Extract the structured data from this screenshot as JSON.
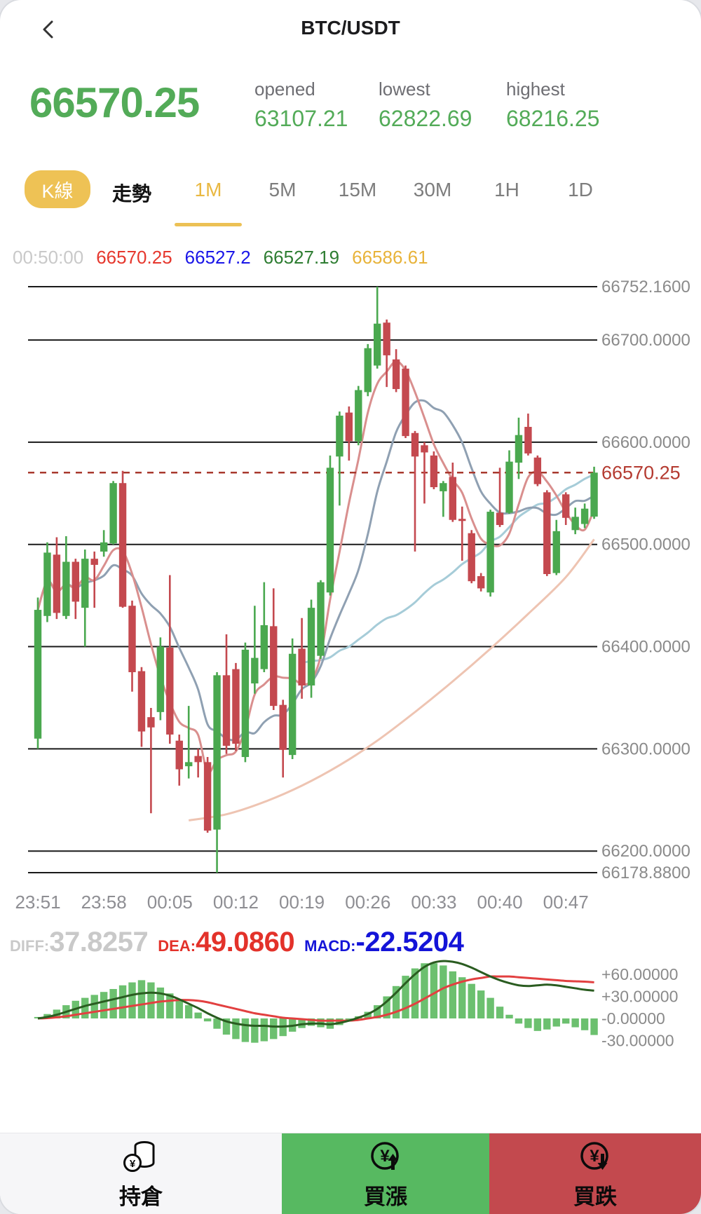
{
  "header": {
    "title": "BTC/USDT"
  },
  "ticker": {
    "price": "66570.25",
    "opened_label": "opened",
    "opened": "63107.21",
    "lowest_label": "lowest",
    "lowest": "62822.69",
    "highest_label": "highest",
    "highest": "68216.25"
  },
  "tabs": {
    "kline_label": "K線",
    "trend_label": "走勢",
    "intervals": [
      "1M",
      "5M",
      "15M",
      "30M",
      "1H",
      "1D"
    ],
    "active_interval": "1M"
  },
  "legend": {
    "time": "00:50:00",
    "items": [
      {
        "text": "66570.25",
        "color": "#e6382e"
      },
      {
        "text": "66527.2",
        "color": "#1a16e8"
      },
      {
        "text": "66527.19",
        "color": "#2e7d32"
      },
      {
        "text": "66586.61",
        "color": "#e8b33a"
      }
    ]
  },
  "macd_info": {
    "diff_label": "DIFF:",
    "diff": "37.8257",
    "diff_color": "#c9c9c9",
    "dea_label": "DEA:",
    "dea": "49.0860",
    "dea_color": "#e3322a",
    "macd_label": "MACD:",
    "macd": "-22.5204",
    "macd_color": "#1414d8"
  },
  "bottom_nav": {
    "positions_label": "持倉",
    "buy_up_label": "買漲",
    "buy_down_label": "買跌"
  },
  "colors": {
    "up": "#4aa84f",
    "down": "#c4494f",
    "grid": "#1a1a1a",
    "axis_text": "#8a8a8a",
    "dashed_price": "#a8392e",
    "ma5": "#d98f8e",
    "ma10": "#8fa0b2",
    "ma30": "#a6ccd8",
    "ma_long": "#eec4b2",
    "macd_diff": "#2a5c20",
    "macd_dea": "#e24040",
    "macd_hist": "#6cc06f",
    "price_green": "#53ab58",
    "accent_yellow": "#eec255",
    "nav_green": "#57b961",
    "nav_red": "#c3494e"
  },
  "chart_data": [
    {
      "type": "candlestick",
      "title": "BTC/USDT 1M candles",
      "interval": "1M",
      "grid": "horizontal",
      "ylim": [
        66178.88,
        66752.16
      ],
      "x_tick_labels": [
        "23:51",
        "23:58",
        "00:05",
        "00:12",
        "00:19",
        "00:26",
        "00:33",
        "00:40",
        "00:47"
      ],
      "y_axis": [
        {
          "value": 66752.16,
          "label": "66752.1600"
        },
        {
          "value": 66700,
          "label": "66700.0000"
        },
        {
          "value": 66600,
          "label": "66600.0000"
        },
        {
          "value": 66500,
          "label": "66500.0000"
        },
        {
          "value": 66400,
          "label": "66400.0000"
        },
        {
          "value": 66300,
          "label": "66300.0000"
        },
        {
          "value": 66200,
          "label": "66200.0000"
        },
        {
          "value": 66178.88,
          "label": "66178.8800"
        }
      ],
      "current_price": {
        "value": 66570.25,
        "label": "66570.25"
      },
      "candles_ohlc": [
        [
          66310,
          66448,
          66300,
          66436
        ],
        [
          66430,
          66502,
          66424,
          66492
        ],
        [
          66490,
          66507,
          66427,
          66433
        ],
        [
          66430,
          66508,
          66427,
          66483
        ],
        [
          66483,
          66486,
          66427,
          66444
        ],
        [
          66438,
          66495,
          66400,
          66486
        ],
        [
          66486,
          66493,
          66438,
          66480
        ],
        [
          66493,
          66514,
          66488,
          66502
        ],
        [
          66501,
          66562,
          66500,
          66560
        ],
        [
          66560,
          66572,
          66438,
          66439
        ],
        [
          66440,
          66445,
          66356,
          66375
        ],
        [
          66376,
          66380,
          66302,
          66317
        ],
        [
          66331,
          66340,
          66237,
          66321
        ],
        [
          66336,
          66409,
          66328,
          66400
        ],
        [
          66399,
          66470,
          66305,
          66314
        ],
        [
          66308,
          66314,
          66264,
          66280
        ],
        [
          66283,
          66342,
          66271,
          66287
        ],
        [
          66293,
          66300,
          66272,
          66287
        ],
        [
          66287,
          66292,
          66218,
          66220
        ],
        [
          66221,
          66375,
          66178.88,
          66372
        ],
        [
          66372,
          66412,
          66295,
          66303
        ],
        [
          66378,
          66384,
          66298,
          66305
        ],
        [
          66292,
          66404,
          66287,
          66397
        ],
        [
          66364,
          66440,
          66354,
          66389
        ],
        [
          66378,
          66463,
          66375,
          66421
        ],
        [
          66420,
          66457,
          66338,
          66342
        ],
        [
          66343,
          66348,
          66272,
          66299
        ],
        [
          66294,
          66408,
          66290,
          66393
        ],
        [
          66398,
          66428,
          66349,
          66362
        ],
        [
          66362,
          66446,
          66350,
          66438
        ],
        [
          66391,
          66465,
          66388,
          66463
        ],
        [
          66453,
          66587,
          66450,
          66575
        ],
        [
          66586,
          66630,
          66538,
          66626
        ],
        [
          66629,
          66635,
          66582,
          66601
        ],
        [
          66601,
          66655,
          66597,
          66651
        ],
        [
          66649,
          66696,
          66645,
          66692
        ],
        [
          66675,
          66752.16,
          66672,
          66716
        ],
        [
          66717,
          66720,
          66654,
          66685
        ],
        [
          66681,
          66691,
          66649,
          66652
        ],
        [
          66672,
          66675,
          66604,
          66606
        ],
        [
          66609,
          66611,
          66493,
          66586
        ],
        [
          66597,
          66600,
          66540,
          66590
        ],
        [
          66587,
          66591,
          66554,
          66556
        ],
        [
          66552,
          66562,
          66527,
          66560
        ],
        [
          66566,
          66580,
          66522,
          66524
        ],
        [
          66525,
          66537,
          66484,
          66523
        ],
        [
          66511,
          66514,
          66462,
          66464
        ],
        [
          66469,
          66472,
          66454,
          66457
        ],
        [
          66453,
          66534,
          66449,
          66532
        ],
        [
          66531,
          66575,
          66517,
          66519
        ],
        [
          66531,
          66592,
          66530,
          66581
        ],
        [
          66580,
          66624,
          66564,
          66607
        ],
        [
          66615,
          66628,
          66587,
          66589
        ],
        [
          66585,
          66587,
          66557,
          66559
        ],
        [
          66551,
          66553,
          66469,
          66471
        ],
        [
          66472,
          66524,
          66470,
          66513
        ],
        [
          66549,
          66551,
          66519,
          66526
        ],
        [
          66514,
          66536,
          66510,
          66527
        ],
        [
          66520,
          66540,
          66516,
          66535
        ],
        [
          66527.2,
          66576,
          66525,
          66570.25
        ]
      ],
      "ma_long_points": [
        [
          16,
          66230
        ],
        [
          20,
          66236
        ],
        [
          24,
          66248
        ],
        [
          28,
          66264
        ],
        [
          32,
          66284
        ],
        [
          36,
          66308
        ],
        [
          40,
          66336
        ],
        [
          44,
          66366
        ],
        [
          48,
          66398
        ],
        [
          52,
          66432
        ],
        [
          56,
          66468
        ],
        [
          59,
          66505
        ]
      ]
    },
    {
      "type": "bar",
      "name": "MACD",
      "ylim": [
        -45,
        85
      ],
      "y_axis": [
        {
          "value": 60,
          "label": "+60.00000"
        },
        {
          "value": 30,
          "label": "+30.00000"
        },
        {
          "value": 0,
          "label": "-0.00000"
        },
        {
          "value": -30,
          "label": "-30.00000"
        }
      ],
      "hist": [
        2,
        6,
        12,
        18,
        24,
        28,
        32,
        36,
        40,
        45,
        49,
        52,
        49,
        42,
        34,
        26,
        18,
        8,
        -4,
        -14,
        -22,
        -28,
        -32,
        -33,
        -31,
        -28,
        -24,
        -18,
        -13,
        -10,
        -12,
        -14,
        -9,
        -4,
        3,
        9,
        18,
        30,
        44,
        58,
        68,
        75,
        75,
        72,
        64,
        56,
        47,
        38,
        28,
        16,
        5,
        -7,
        -13,
        -17,
        -15,
        -11,
        -7,
        -12,
        -16,
        -22.5
      ],
      "diff": [
        0,
        2,
        5,
        9,
        13,
        17,
        20,
        23,
        26,
        29,
        32,
        34,
        35,
        34,
        31,
        26,
        20,
        14,
        7,
        1,
        -4,
        -7,
        -9,
        -10,
        -10,
        -11,
        -11,
        -10,
        -8,
        -7,
        -7,
        -8,
        -6,
        -3,
        1,
        6,
        13,
        23,
        35,
        48,
        60,
        70,
        76,
        78,
        77,
        74,
        69,
        63,
        57,
        52,
        48,
        45,
        44,
        45,
        46,
        45,
        43,
        41,
        39,
        37.8
      ],
      "dea": [
        0,
        0.5,
        1.5,
        3,
        5,
        7,
        9,
        11,
        13,
        15,
        17,
        19,
        21,
        23,
        24,
        25,
        25,
        24,
        22,
        19,
        16,
        13,
        10,
        7,
        5,
        3,
        1,
        0,
        -1,
        -2,
        -3,
        -3,
        -3,
        -3,
        -2,
        0,
        2,
        5,
        9,
        14,
        20,
        27,
        34,
        41,
        46,
        50,
        53,
        55,
        57,
        57,
        57,
        56,
        55,
        54,
        53,
        52,
        51,
        50.5,
        50,
        49.1
      ]
    }
  ]
}
